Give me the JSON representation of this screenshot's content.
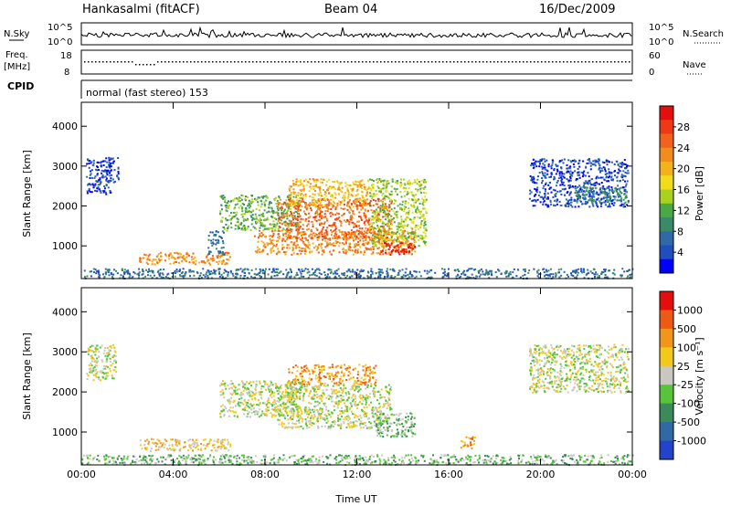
{
  "header": {
    "station": "Hankasalmi (fitACF)",
    "beam": "Beam 04",
    "date": "16/Dec/2009"
  },
  "noise_panel": {
    "left_label": "N.Sky",
    "right_label": "N.Search",
    "left_ticks": [
      "10^5",
      "10^0"
    ],
    "right_ticks": [
      "10^5",
      "10^0"
    ]
  },
  "freq_panel": {
    "left_label_1": "Freq.",
    "left_label_2": "[MHz]",
    "left_ticks": [
      "18",
      "8"
    ],
    "right_label": "Nave",
    "right_ticks": [
      "60",
      "0"
    ]
  },
  "cpid_panel": {
    "label": "CPID",
    "text": "normal (fast stereo) 153"
  },
  "chart_data": [
    {
      "type": "heatmap",
      "name": "power",
      "ylabel": "Slant Range [km]",
      "xlabel": "",
      "yticks": [
        1000,
        2000,
        3000,
        4000
      ],
      "ylim": [
        180,
        4600
      ],
      "xlim": [
        0,
        24
      ],
      "colorbar": {
        "label": "Power [dB]",
        "ticks": [
          "4",
          "8",
          "12",
          "16",
          "20",
          "24",
          "28"
        ],
        "colors": [
          "#0000ff",
          "#1f4fbd",
          "#2f6aa6",
          "#3a8a6a",
          "#4aa845",
          "#a8d21c",
          "#f2dc1a",
          "#f2b31a",
          "#f28c1a",
          "#f2621a",
          "#ee3a14",
          "#e60d0d"
        ]
      },
      "regions": [
        {
          "x0": 0.2,
          "x1": 1.3,
          "y0": 2300,
          "y1": 3200,
          "level": 1
        },
        {
          "x0": 1.0,
          "x1": 1.6,
          "y0": 2600,
          "y1": 3250,
          "level": 1
        },
        {
          "x0": 2.5,
          "x1": 6.5,
          "y0": 550,
          "y1": 850,
          "level": 8
        },
        {
          "x0": 5.5,
          "x1": 6.2,
          "y0": 800,
          "y1": 1400,
          "level": 2
        },
        {
          "x0": 6.0,
          "x1": 9.5,
          "y0": 1400,
          "y1": 2300,
          "level": 4
        },
        {
          "x0": 7.5,
          "x1": 14.5,
          "y0": 800,
          "y1": 1400,
          "level": 8
        },
        {
          "x0": 8.5,
          "x1": 13.5,
          "y0": 1200,
          "y1": 2200,
          "level": 9
        },
        {
          "x0": 9.0,
          "x1": 12.5,
          "y0": 2000,
          "y1": 2700,
          "level": 7
        },
        {
          "x0": 12.5,
          "x1": 15.0,
          "y0": 1000,
          "y1": 2700,
          "level": 5
        },
        {
          "x0": 13.0,
          "x1": 14.5,
          "y0": 800,
          "y1": 1100,
          "level": 11
        },
        {
          "x0": 19.5,
          "x1": 23.8,
          "y0": 2000,
          "y1": 3200,
          "level": 1
        },
        {
          "x0": 21.5,
          "x1": 23.8,
          "y0": 2100,
          "y1": 2500,
          "level": 3
        },
        {
          "x0": 0.0,
          "x1": 24.0,
          "y0": 200,
          "y1": 450,
          "level": 2
        }
      ]
    },
    {
      "type": "heatmap",
      "name": "velocity",
      "ylabel": "Slant Range [km]",
      "xlabel": "Time UT",
      "yticks": [
        1000,
        2000,
        3000,
        4000
      ],
      "ylim": [
        180,
        4600
      ],
      "xlim": [
        0,
        24
      ],
      "xticks": [
        "00:00",
        "04:00",
        "08:00",
        "12:00",
        "16:00",
        "20:00",
        "00:00"
      ],
      "colorbar": {
        "label": "Velocity [m s⁻¹]",
        "ticks": [
          "1000",
          "500",
          "100",
          "25",
          "-25",
          "-100",
          "-500",
          "-1000"
        ],
        "colors": [
          "#2244cc",
          "#2f6aa6",
          "#3a8a5a",
          "#58c43a",
          "#c8c8c0",
          "#f2c81a",
          "#f2961a",
          "#ee5a14",
          "#e60d0d"
        ]
      },
      "regions": [
        {
          "x0": 0.2,
          "x1": 1.5,
          "y0": 2300,
          "y1": 3200,
          "level": 4
        },
        {
          "x0": 2.5,
          "x1": 6.5,
          "y0": 550,
          "y1": 850,
          "level": 5
        },
        {
          "x0": 6.0,
          "x1": 9.5,
          "y0": 1400,
          "y1": 2300,
          "level": 4
        },
        {
          "x0": 8.5,
          "x1": 13.5,
          "y0": 1100,
          "y1": 2200,
          "level": 4
        },
        {
          "x0": 9.0,
          "x1": 12.8,
          "y0": 2200,
          "y1": 2700,
          "level": 6
        },
        {
          "x0": 12.8,
          "x1": 14.5,
          "y0": 900,
          "y1": 1500,
          "level": 3
        },
        {
          "x0": 16.5,
          "x1": 17.2,
          "y0": 600,
          "y1": 900,
          "level": 6
        },
        {
          "x0": 19.5,
          "x1": 23.8,
          "y0": 2000,
          "y1": 3200,
          "level": 4
        },
        {
          "x0": 0.0,
          "x1": 24.0,
          "y0": 200,
          "y1": 450,
          "level": 3
        }
      ]
    }
  ]
}
